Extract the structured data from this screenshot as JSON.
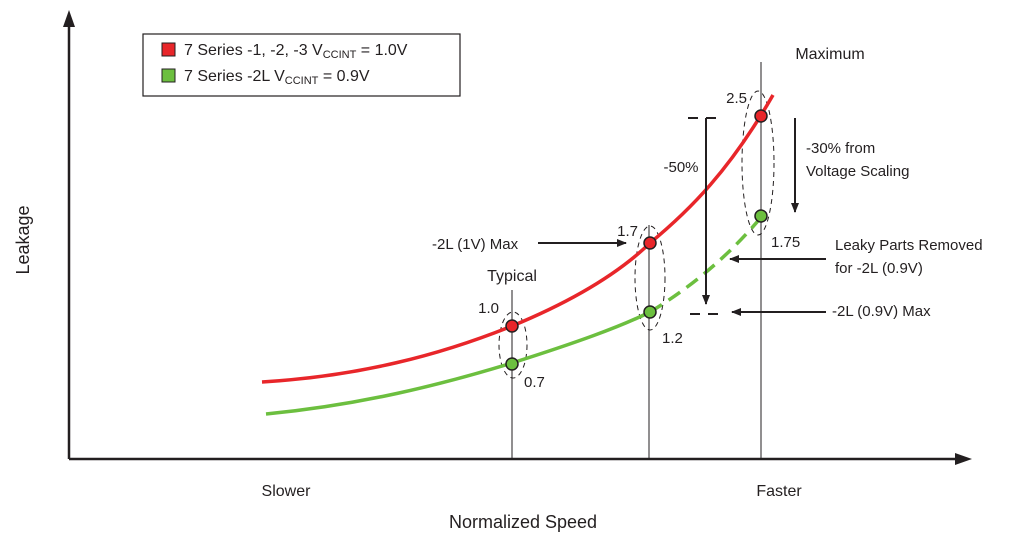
{
  "colors": {
    "series1": "#e8262a",
    "series2": "#6cbf3f",
    "axis": "#231f20"
  },
  "legend": {
    "items": [
      {
        "prefix": "7 Series -1, -2, -3  V",
        "sub": "CCINT",
        "suffix": " = 1.0V"
      },
      {
        "prefix": "7 Series -2L  V",
        "sub": "CCINT",
        "suffix": " = 0.9V"
      }
    ]
  },
  "chart_data": {
    "type": "line",
    "xlabel": "Normalized Speed",
    "ylabel": "Leakage",
    "x_tick_labels": [
      {
        "label": "Slower",
        "x": 0.0
      },
      {
        "label": "Faster",
        "x": 1.0
      }
    ],
    "series": [
      {
        "name": "7 Series -1, -2, -3 VCCINT = 1.0V",
        "color": "#e8262a",
        "style": "solid",
        "points": [
          {
            "x": 0.0,
            "y": 0.5
          },
          {
            "x": 0.5,
            "y": 1.0,
            "label": "1.0"
          },
          {
            "x": 0.75,
            "y": 1.7,
            "label": "1.7"
          },
          {
            "x": 0.95,
            "y": 2.5,
            "label": "2.5"
          }
        ]
      },
      {
        "name": "7 Series -2L VCCINT = 0.9V",
        "color": "#6cbf3f",
        "style": "solid-then-dashed",
        "points": [
          {
            "x": 0.0,
            "y": 0.3
          },
          {
            "x": 0.5,
            "y": 0.7,
            "label": "0.7"
          },
          {
            "x": 0.75,
            "y": 1.2,
            "label": "1.2"
          },
          {
            "x": 0.95,
            "y": 1.75,
            "label": "1.75"
          }
        ]
      }
    ],
    "markers": [
      {
        "label": "Typical",
        "x": 0.5
      },
      {
        "label": "",
        "x": 0.75
      },
      {
        "label": "Maximum",
        "x": 0.95
      }
    ],
    "annotations": {
      "l1v_max": "-2L (1V) Max",
      "l09v_max": "-2L (0.9V) Max",
      "leaky_line1": "Leaky Parts Removed",
      "leaky_line2": "for -2L (0.9V)",
      "minus50": "-50%",
      "scaling_line1": "-30% from",
      "scaling_line2": "Voltage Scaling"
    }
  }
}
